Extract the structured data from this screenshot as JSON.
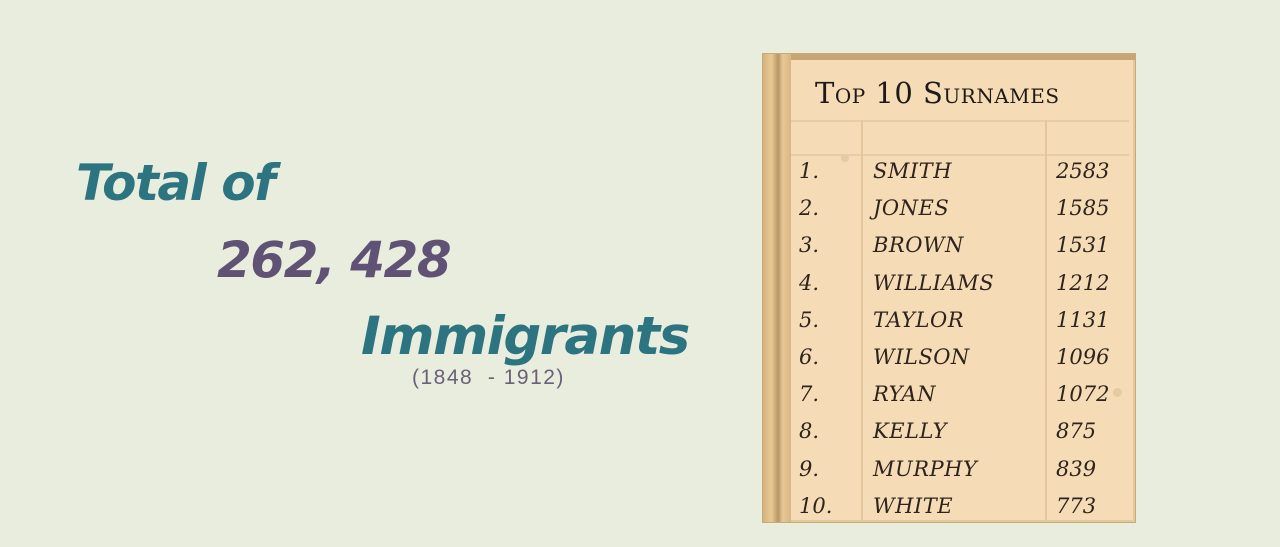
{
  "headline": {
    "line1": "Total of",
    "line2": "262, 428",
    "line3": "Immigrants",
    "years": "(1848  - 1912)"
  },
  "ledger": {
    "title": "Top 10 Surnames",
    "rows": [
      {
        "rank": "1.",
        "surname": "SMITH",
        "count": "2583"
      },
      {
        "rank": "2.",
        "surname": "JONES",
        "count": "1585"
      },
      {
        "rank": "3.",
        "surname": "BROWN",
        "count": "1531"
      },
      {
        "rank": "4.",
        "surname": "WILLIAMS",
        "count": "1212"
      },
      {
        "rank": "5.",
        "surname": "TAYLOR",
        "count": "1131"
      },
      {
        "rank": "6.",
        "surname": "WILSON",
        "count": "1096"
      },
      {
        "rank": "7.",
        "surname": "RYAN",
        "count": "1072"
      },
      {
        "rank": "8.",
        "surname": "KELLY",
        "count": "875"
      },
      {
        "rank": "9.",
        "surname": "MURPHY",
        "count": "839"
      },
      {
        "rank": "10.",
        "surname": "WHITE",
        "count": "773"
      }
    ]
  },
  "colors": {
    "background": "#e9eddd",
    "teal": "#2b7480",
    "purple": "#5f5275",
    "parchment": "#f5dcb6",
    "ink": "#2e241d"
  }
}
